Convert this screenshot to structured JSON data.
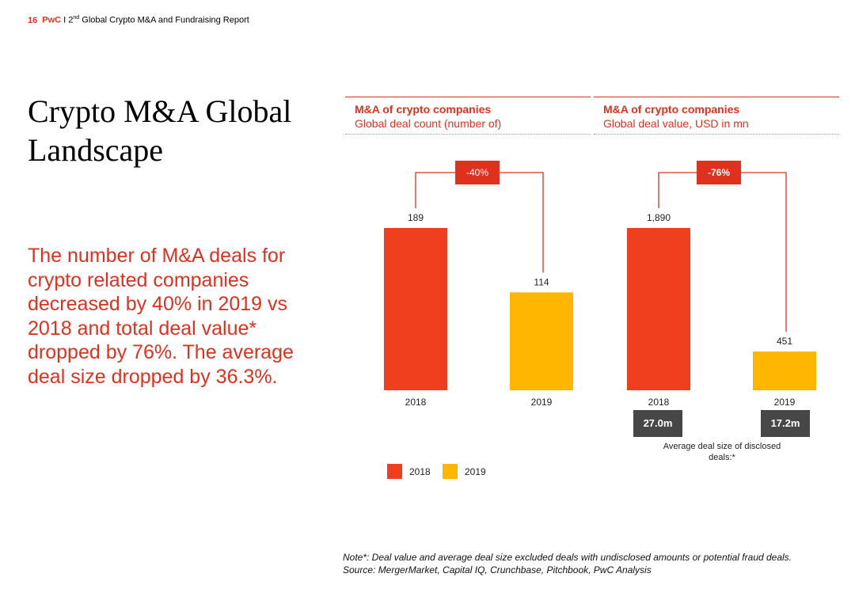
{
  "header": {
    "page_number": "16",
    "brand": "PwC",
    "separator": "I",
    "title_prefix": "2",
    "title_sup": "nd",
    "title_suffix": "Global Crypto M&A and Fundraising Report"
  },
  "title": "Crypto M&A Global Landscape",
  "summary": "The number of M&A deals for crypto related companies decreased by 40% in 2019 vs 2018 and total deal value* dropped by 76%. The average deal size dropped by 36.3%.",
  "colors": {
    "accent": "#e0301e",
    "bar_2018": "#f03f1e",
    "bar_2019": "#ffb600",
    "dark_box": "#474747"
  },
  "chart_data": [
    {
      "type": "bar",
      "title": "M&A of crypto companies",
      "subtitle": "Global deal count (number of)",
      "categories": [
        "2018",
        "2019"
      ],
      "values": [
        189,
        114
      ],
      "value_labels": [
        "189",
        "114"
      ],
      "change_label": "-40%",
      "ylim": [
        0,
        189
      ]
    },
    {
      "type": "bar",
      "title": "M&A of crypto companies",
      "subtitle": "Global deal value, USD in mn",
      "categories": [
        "2018",
        "2019"
      ],
      "values": [
        1890,
        451
      ],
      "value_labels": [
        "1,890",
        "451"
      ],
      "change_label": "-76%",
      "ylim": [
        0,
        1890
      ],
      "avg_deal_size": [
        "27.0m",
        "17.2m"
      ],
      "avg_deal_size_caption": "Average deal size of disclosed deals:*"
    }
  ],
  "legend": [
    {
      "label": "2018",
      "color": "#f03f1e"
    },
    {
      "label": "2019",
      "color": "#ffb600"
    }
  ],
  "note": "Note*: Deal value and average deal size excluded deals with undisclosed amounts or potential fraud deals.",
  "source": "Source: MergerMarket, Capital IQ, Crunchbase, Pitchbook, PwC Analysis"
}
